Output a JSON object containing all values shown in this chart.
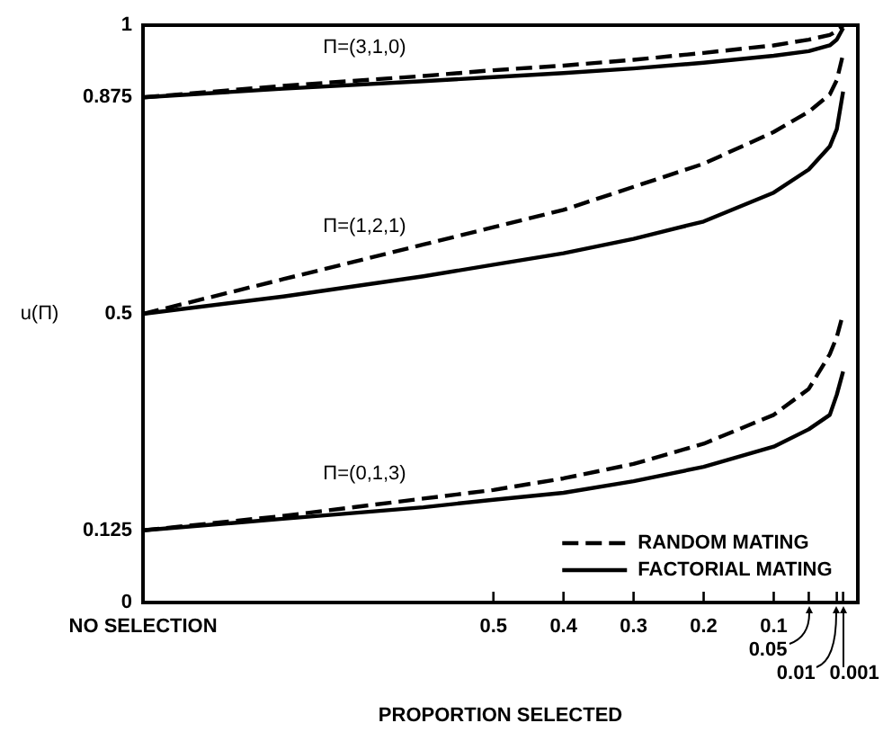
{
  "chart_data": {
    "type": "line",
    "xlabel": "PROPORTION SELECTED",
    "ylabel": "u(Π)",
    "x": [
      1,
      0.8,
      0.6,
      0.5,
      0.4,
      0.3,
      0.2,
      0.1,
      0.05,
      0.02,
      0.01,
      0.001
    ],
    "series": [
      {
        "name": "RANDOM MATING",
        "color": "#000000",
        "line_style": "dashed",
        "values": [
          0.875,
          0.895,
          0.912,
          0.922,
          0.93,
          0.94,
          0.952,
          0.965,
          0.975,
          0.983,
          0.99,
          0.998
        ]
      },
      {
        "name": "FACTORIAL MATING",
        "color": "#000000",
        "line_style": "solid",
        "values": [
          0.875,
          0.89,
          0.903,
          0.91,
          0.917,
          0.925,
          0.935,
          0.947,
          0.955,
          0.965,
          0.975,
          0.995
        ]
      },
      {
        "color": "#000000",
        "line_style": "dashed",
        "values": [
          0.5,
          0.56,
          0.62,
          0.65,
          0.68,
          0.72,
          0.76,
          0.815,
          0.85,
          0.88,
          0.905,
          0.95
        ]
      },
      {
        "color": "#000000",
        "line_style": "solid",
        "values": [
          0.5,
          0.53,
          0.565,
          0.585,
          0.605,
          0.63,
          0.66,
          0.71,
          0.75,
          0.79,
          0.82,
          0.885
        ]
      },
      {
        "color": "#000000",
        "line_style": "dashed",
        "values": [
          0.125,
          0.15,
          0.18,
          0.195,
          0.215,
          0.24,
          0.275,
          0.325,
          0.37,
          0.43,
          0.46,
          0.5
        ]
      },
      {
        "color": "#000000",
        "line_style": "solid",
        "values": [
          0.125,
          0.145,
          0.165,
          0.178,
          0.19,
          0.21,
          0.235,
          0.27,
          0.3,
          0.325,
          0.36,
          0.4
        ]
      }
    ],
    "annotations": [
      "Π=(3,1,0)",
      "Π=(1,2,1)",
      "Π=(0,1,3)",
      "0.05",
      "0.01",
      "0.001"
    ],
    "xlim": [
      1,
      -0.02
    ],
    "xticks": [
      {
        "value": 1,
        "label": "NO SELECTION"
      },
      0.5,
      0.4,
      0.3,
      0.2,
      0.1,
      {
        "value": 0.05,
        "label": null
      },
      {
        "value": 0.01,
        "label": null
      },
      {
        "value": 0.001,
        "label": null
      }
    ],
    "ylim": [
      0,
      1
    ],
    "yticks": [
      0,
      0.125,
      0.5,
      0.875,
      1
    ],
    "legend": "bottom right",
    "marker": "none",
    "grid": false
  }
}
